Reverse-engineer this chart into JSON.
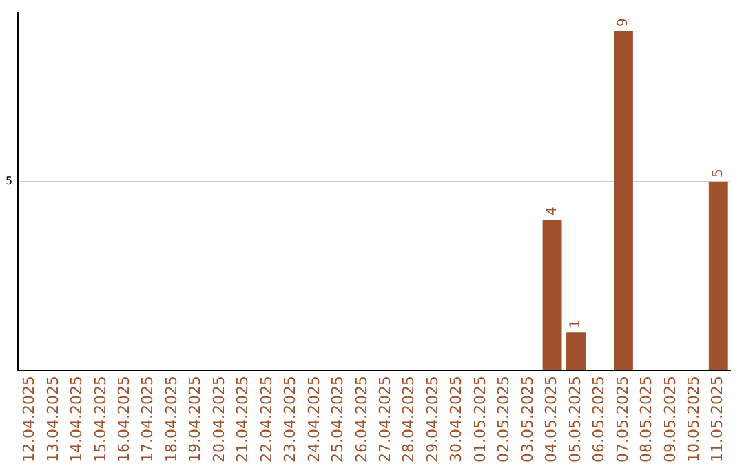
{
  "chart_data": {
    "type": "bar",
    "categories": [
      "12.04.2025",
      "13.04.2025",
      "14.04.2025",
      "15.04.2025",
      "16.04.2025",
      "17.04.2025",
      "18.04.2025",
      "19.04.2025",
      "20.04.2025",
      "21.04.2025",
      "22.04.2025",
      "23.04.2025",
      "24.04.2025",
      "25.04.2025",
      "26.04.2025",
      "27.04.2025",
      "28.04.2025",
      "29.04.2025",
      "30.04.2025",
      "01.05.2025",
      "02.05.2025",
      "03.05.2025",
      "04.05.2025",
      "05.05.2025",
      "06.05.2025",
      "07.05.2025",
      "08.05.2025",
      "09.05.2025",
      "10.05.2025",
      "11.05.2025"
    ],
    "values": [
      null,
      null,
      null,
      null,
      null,
      null,
      null,
      null,
      null,
      null,
      null,
      null,
      null,
      null,
      null,
      null,
      null,
      null,
      null,
      null,
      null,
      null,
      4,
      1,
      null,
      9,
      null,
      null,
      null,
      5
    ],
    "color": "#a0522d",
    "ylim": [
      0,
      9.5
    ],
    "yticks": [
      5
    ],
    "grid": "y",
    "legend": false,
    "data_labels": true
  }
}
